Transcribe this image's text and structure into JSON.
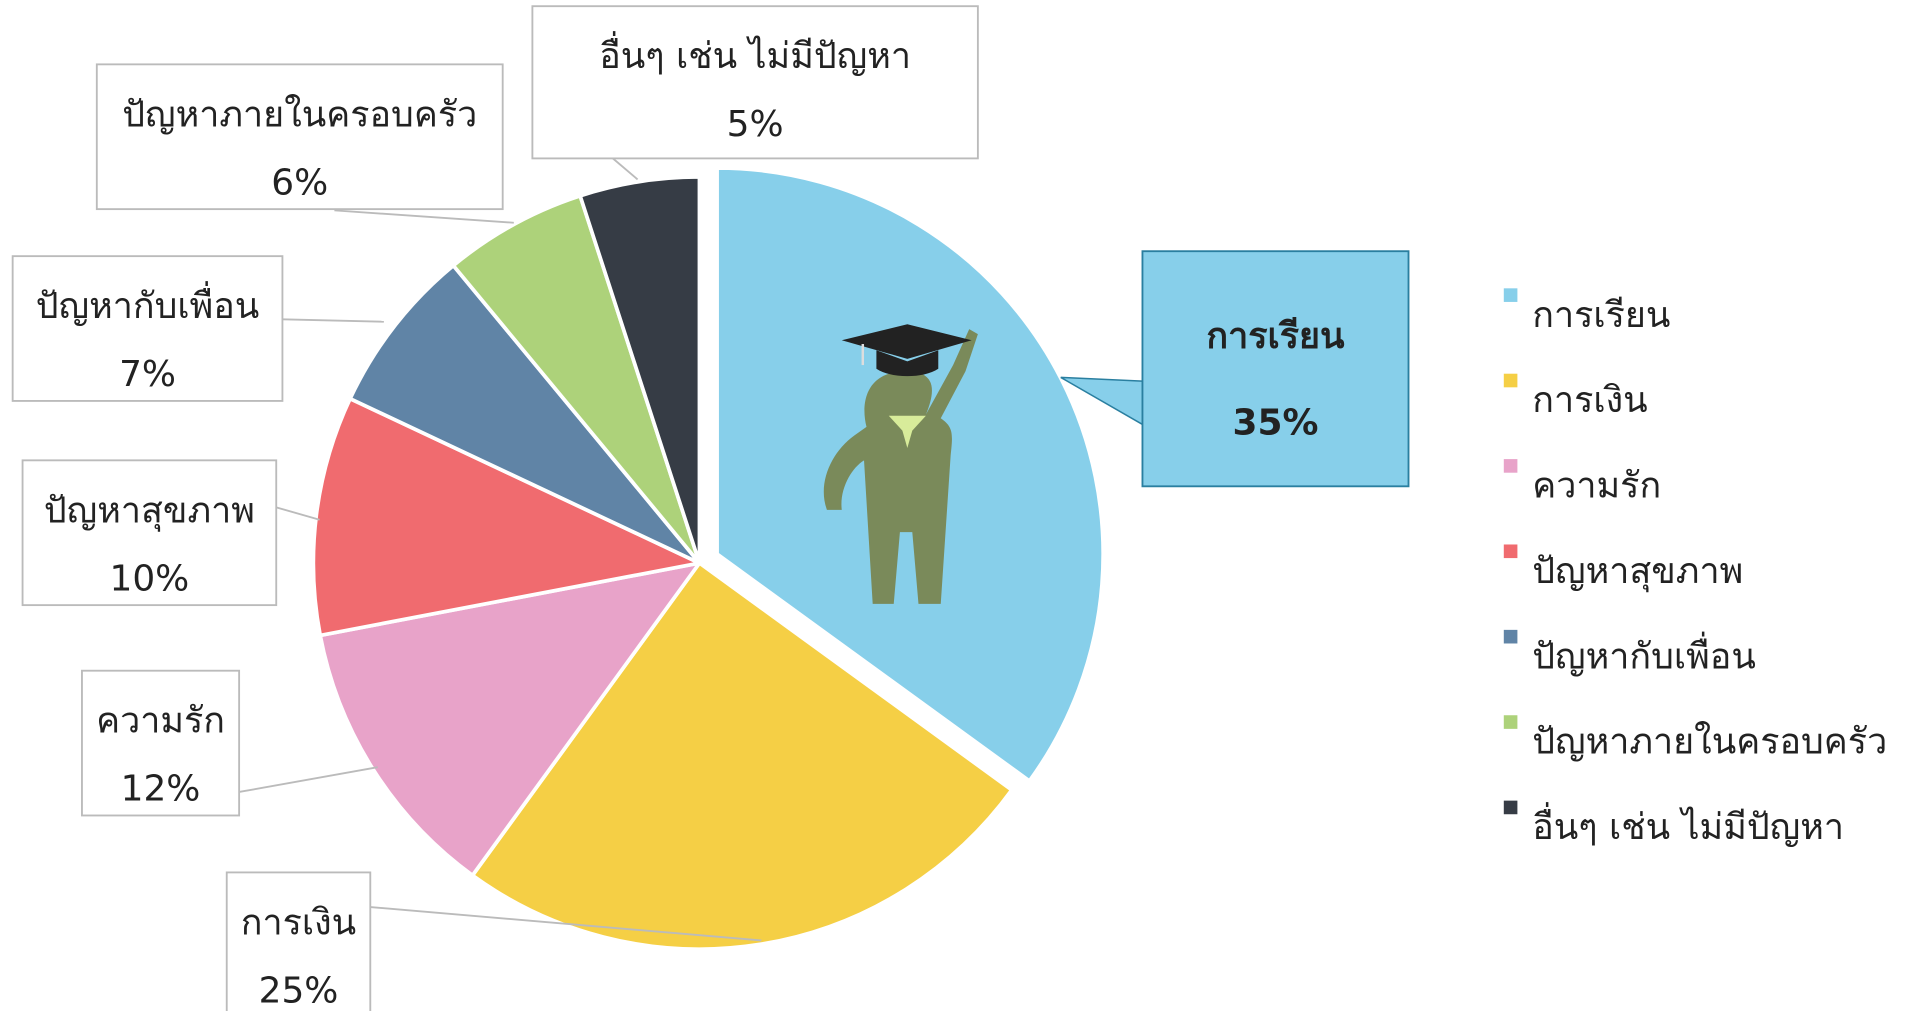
{
  "chart_data": {
    "type": "pie",
    "categories": [
      "การเรียน",
      "การเงิน",
      "ความรัก",
      "ปัญหาสุขภาพ",
      "ปัญหากับเพื่อน",
      "ปัญหาภายในครอบครัว",
      "อื่นๆ เช่น ไม่มีปัญหา"
    ],
    "values": [
      35,
      25,
      12,
      10,
      7,
      6,
      5
    ],
    "value_labels": [
      "35%",
      "25%",
      "12%",
      "10%",
      "7%",
      "6%",
      "5%"
    ],
    "colors": [
      "#87cfea",
      "#f5cf45",
      "#e8a3c9",
      "#f06b6f",
      "#6084a6",
      "#add27a",
      "#363c45"
    ],
    "legend": "right"
  }
}
